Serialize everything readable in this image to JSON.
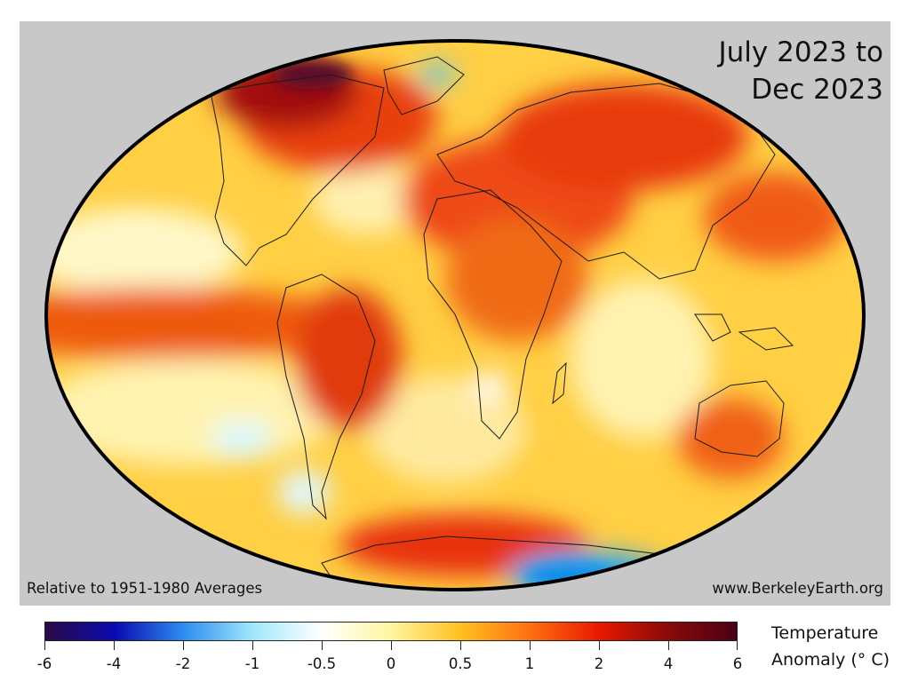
{
  "period": {
    "line1": "July 2023 to",
    "line2": "Dec 2023"
  },
  "baseline_note": "Relative to 1951-1980 Averages",
  "source_note": "www.BerkeleyEarth.org",
  "legend": {
    "title_line1": "Temperature",
    "title_line2": "Anomaly (° C)",
    "ticks": [
      "-6",
      "-4",
      "-2",
      "-1",
      "-0.5",
      "0",
      "0.5",
      "1",
      "2",
      "4",
      "6"
    ],
    "stops": [
      "#2a0a45",
      "#0a0ab0",
      "#2d8cf0",
      "#9fe8fb",
      "#ffffff",
      "#fff6a0",
      "#ffc020",
      "#ff7010",
      "#e81a00",
      "#8a0a0a",
      "#4a0015"
    ]
  },
  "colors": {
    "ocean_background": "#c8c8c8",
    "map_base": "#ffcf44",
    "border": "#000000"
  }
}
